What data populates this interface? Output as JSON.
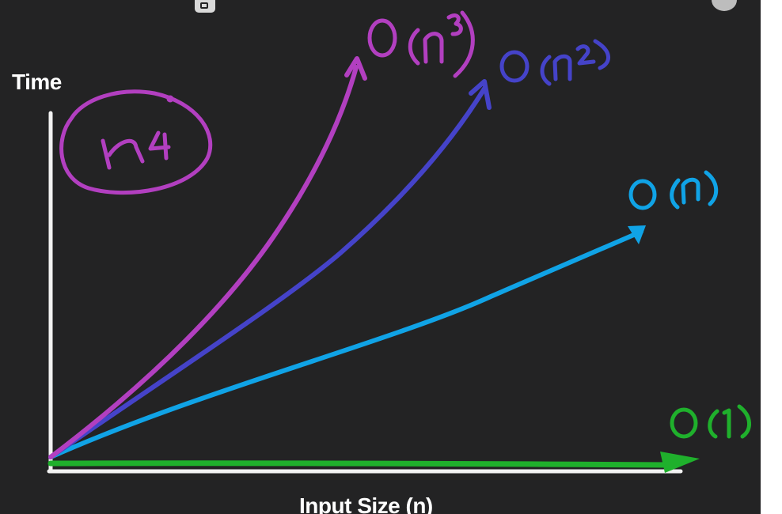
{
  "axes": {
    "y_label": "Time",
    "x_label": "Input Size (n)"
  },
  "curves": [
    {
      "label": "O(n³)",
      "color": "#b23fc0"
    },
    {
      "label": "O(n²)",
      "color": "#4543c9"
    },
    {
      "label": "O(n)",
      "color": "#10a3e6"
    },
    {
      "label": "O(1)",
      "color": "#1fb02c"
    }
  ],
  "annotation": {
    "label": "n⁴",
    "color": "#b23fc0"
  },
  "colors": {
    "background": "#232324",
    "axis": "#ffffff"
  }
}
